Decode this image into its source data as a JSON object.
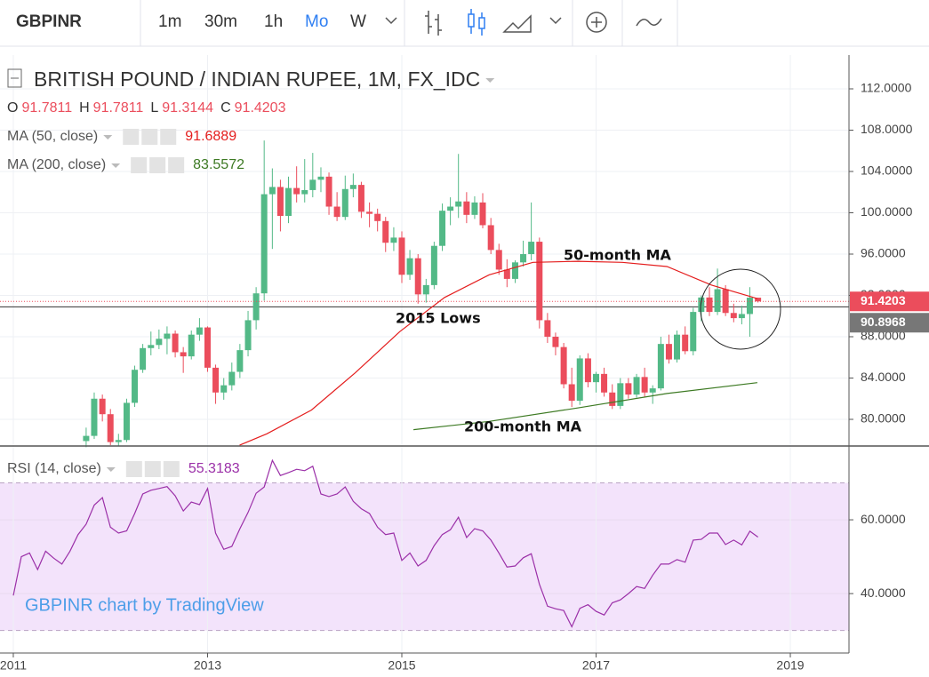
{
  "chart_data": {
    "type": "candlestick",
    "toolbar": {
      "symbol": "GBPINR",
      "intervals": [
        "1m",
        "30m",
        "1h",
        "Mo",
        "W"
      ],
      "active_interval": 3
    },
    "title": "BRITISH POUND / INDIAN RUPEE, 1M, FX_IDC",
    "ohlc_labels": [
      "O",
      "H",
      "L",
      "C"
    ],
    "up_color": "#53b987",
    "down_color": "#eb4d5c",
    "x": [
      2011.0,
      2011.083,
      2011.167,
      2011.25,
      2011.333,
      2011.417,
      2011.5,
      2011.583,
      2011.667,
      2011.75,
      2011.833,
      2011.917,
      2012.0,
      2012.083,
      2012.167,
      2012.25,
      2012.333,
      2012.417,
      2012.5,
      2012.583,
      2012.667,
      2012.75,
      2012.833,
      2012.917,
      2013.0,
      2013.083,
      2013.167,
      2013.25,
      2013.333,
      2013.417,
      2013.5,
      2013.583,
      2013.667,
      2013.75,
      2013.833,
      2013.917,
      2014.0,
      2014.083,
      2014.167,
      2014.25,
      2014.333,
      2014.417,
      2014.5,
      2014.583,
      2014.667,
      2014.75,
      2014.833,
      2014.917,
      2015.0,
      2015.083,
      2015.167,
      2015.25,
      2015.333,
      2015.417,
      2015.5,
      2015.583,
      2015.667,
      2015.75,
      2015.833,
      2015.917,
      2016.0,
      2016.083,
      2016.167,
      2016.25,
      2016.333,
      2016.417,
      2016.5,
      2016.583,
      2016.667,
      2016.75,
      2016.833,
      2016.917,
      2017.0,
      2017.083,
      2017.167,
      2017.25,
      2017.333,
      2017.417,
      2017.5,
      2017.583,
      2017.667,
      2017.75,
      2017.833,
      2017.917,
      2018.0,
      2018.083,
      2018.167,
      2018.25,
      2018.333,
      2018.417,
      2018.5,
      2018.583,
      2018.667
    ],
    "ohlc": [
      null,
      null,
      null,
      null,
      null,
      null,
      null,
      null,
      null,
      [
        77.9,
        79.2,
        77.3,
        78.4
      ],
      [
        78.4,
        82.6,
        78.1,
        82.0
      ],
      [
        82.0,
        82.4,
        79.8,
        80.5
      ],
      [
        80.5,
        81.0,
        77.5,
        77.8
      ],
      [
        77.8,
        78.6,
        77.4,
        78.0
      ],
      [
        78.0,
        82.0,
        77.8,
        81.6
      ],
      [
        81.6,
        85.2,
        81.2,
        84.8
      ],
      [
        84.8,
        87.3,
        84.5,
        86.9
      ],
      [
        86.9,
        88.5,
        86.2,
        87.2
      ],
      [
        87.2,
        88.7,
        86.8,
        87.8
      ],
      [
        87.8,
        89.0,
        86.3,
        88.3
      ],
      [
        88.3,
        88.6,
        86.0,
        86.5
      ],
      [
        86.5,
        87.0,
        84.5,
        86.1
      ],
      [
        86.1,
        88.6,
        85.8,
        88.2
      ],
      [
        88.2,
        89.8,
        87.6,
        88.9
      ],
      [
        88.9,
        89.0,
        84.6,
        85.0
      ],
      [
        85.0,
        85.3,
        81.5,
        82.6
      ],
      [
        82.6,
        84.0,
        81.9,
        83.3
      ],
      [
        83.3,
        85.5,
        82.8,
        84.6
      ],
      [
        84.6,
        87.3,
        84.0,
        86.7
      ],
      [
        86.7,
        90.5,
        86.1,
        89.6
      ],
      [
        89.6,
        92.8,
        88.7,
        92.2
      ],
      [
        92.2,
        107.0,
        91.5,
        101.8
      ],
      [
        101.8,
        104.3,
        96.5,
        102.5
      ],
      [
        102.5,
        103.2,
        98.2,
        99.7
      ],
      [
        99.7,
        103.5,
        99.0,
        102.4
      ],
      [
        102.4,
        104.5,
        101.0,
        101.8
      ],
      [
        101.8,
        105.2,
        101.0,
        102.2
      ],
      [
        102.2,
        105.8,
        101.5,
        103.2
      ],
      [
        103.2,
        104.4,
        102.0,
        103.5
      ],
      [
        103.5,
        103.9,
        99.8,
        100.6
      ],
      [
        100.6,
        102.0,
        99.2,
        99.6
      ],
      [
        99.6,
        103.6,
        99.3,
        102.3
      ],
      [
        102.3,
        103.8,
        101.5,
        102.7
      ],
      [
        102.7,
        103.0,
        99.5,
        100.1
      ],
      [
        100.1,
        101.0,
        98.6,
        99.9
      ],
      [
        99.9,
        100.4,
        98.2,
        99.2
      ],
      [
        99.2,
        99.6,
        96.2,
        97.1
      ],
      [
        97.1,
        98.6,
        96.3,
        97.6
      ],
      [
        97.6,
        98.2,
        93.2,
        94.0
      ],
      [
        94.0,
        96.4,
        93.5,
        95.6
      ],
      [
        95.6,
        96.0,
        91.2,
        92.1
      ],
      [
        92.1,
        93.6,
        91.3,
        93.0
      ],
      [
        93.0,
        97.2,
        92.6,
        96.8
      ],
      [
        96.8,
        100.9,
        96.3,
        100.2
      ],
      [
        100.2,
        101.5,
        98.8,
        100.6
      ],
      [
        100.6,
        105.7,
        99.5,
        101.1
      ],
      [
        101.1,
        102.0,
        99.0,
        99.8
      ],
      [
        99.8,
        101.6,
        99.4,
        101.0
      ],
      [
        101.0,
        101.9,
        98.5,
        98.8
      ],
      [
        98.8,
        99.5,
        96.0,
        96.4
      ],
      [
        96.4,
        97.0,
        94.0,
        94.5
      ],
      [
        94.5,
        95.5,
        92.8,
        93.6
      ],
      [
        93.6,
        95.4,
        93.2,
        95.2
      ],
      [
        95.2,
        97.3,
        94.8,
        96.0
      ],
      [
        96.0,
        101.0,
        95.4,
        97.2
      ],
      [
        97.2,
        97.6,
        88.8,
        89.6
      ],
      [
        89.6,
        90.3,
        87.4,
        88.0
      ],
      [
        88.0,
        88.4,
        86.2,
        87.0
      ],
      [
        87.0,
        87.4,
        83.0,
        83.4
      ],
      [
        83.4,
        85.0,
        81.2,
        81.8
      ],
      [
        81.8,
        86.2,
        81.4,
        85.9
      ],
      [
        85.9,
        86.4,
        83.1,
        83.6
      ],
      [
        83.6,
        84.6,
        82.6,
        84.4
      ],
      [
        84.4,
        85.0,
        82.2,
        82.6
      ],
      [
        82.6,
        83.4,
        81.0,
        81.3
      ],
      [
        81.3,
        84.0,
        81.0,
        83.5
      ],
      [
        83.5,
        84.0,
        82.0,
        82.4
      ],
      [
        82.4,
        84.4,
        82.1,
        84.1
      ],
      [
        84.1,
        85.0,
        82.2,
        82.6
      ],
      [
        82.6,
        83.3,
        81.5,
        83.0
      ],
      [
        83.0,
        88.0,
        82.8,
        87.3
      ],
      [
        87.3,
        88.2,
        85.4,
        85.8
      ],
      [
        85.8,
        88.6,
        85.5,
        88.2
      ],
      [
        88.2,
        89.0,
        86.3,
        86.6
      ],
      [
        86.6,
        90.8,
        86.2,
        90.4
      ],
      [
        90.4,
        92.0,
        89.5,
        91.8
      ],
      [
        91.8,
        92.8,
        90.0,
        90.4
      ],
      [
        90.4,
        94.6,
        90.1,
        92.6
      ],
      [
        92.6,
        93.0,
        90.0,
        90.3
      ],
      [
        90.3,
        91.2,
        89.4,
        89.8
      ],
      [
        89.8,
        91.0,
        89.2,
        90.2
      ],
      [
        90.2,
        92.8,
        88.0,
        91.78
      ],
      [
        91.7811,
        91.7811,
        91.3144,
        91.4203
      ]
    ],
    "xlim": [
      2010.863,
      2019.604
    ],
    "xticks": [
      2011,
      2013,
      2015,
      2017,
      2019
    ],
    "ylim": [
      77.42,
      115.27
    ],
    "yticks": [
      {
        "value": 80,
        "label": "80.0000"
      },
      {
        "value": 84,
        "label": "84.0000"
      },
      {
        "value": 88,
        "label": "88.0000"
      },
      {
        "value": 92,
        "label": "92.0000"
      },
      {
        "value": 96,
        "label": "96.0000"
      },
      {
        "value": 100,
        "label": "100.0000"
      },
      {
        "value": 104,
        "label": "104.0000"
      },
      {
        "value": 108,
        "label": "108.0000"
      },
      {
        "value": 112,
        "label": "112.0000"
      }
    ],
    "grid": true,
    "crosshair_price": 90.8968,
    "ma": [
      {
        "name": "MA (50, close)",
        "color": "#e41d1d",
        "x": [
          2013.33,
          2013.61,
          2014.07,
          2014.52,
          2014.98,
          2015.44,
          2015.9,
          2016.35,
          2016.81,
          2017.27,
          2017.73,
          2018.19,
          2018.66
        ],
        "values": [
          77.5,
          78.6,
          80.9,
          84.5,
          88.5,
          91.8,
          94.0,
          95.2,
          95.3,
          95.2,
          94.8,
          93.0,
          91.6889
        ]
      },
      {
        "name": "MA (200, close)",
        "color": "#3d7a23",
        "x": [
          2015.12,
          2015.9,
          2016.81,
          2017.73,
          2018.66
        ],
        "values": [
          79.0,
          79.8,
          81.1,
          82.5,
          83.5572
        ]
      }
    ],
    "rsi": {
      "name": "RSI (14, close)",
      "color": "#9b30a8",
      "band_color": "#f3e3fb",
      "values": [
        39.5,
        50,
        51,
        46.5,
        51.5,
        49.6,
        48,
        51.5,
        56,
        58.8,
        64,
        66,
        58,
        56.4,
        57,
        61.7,
        67,
        68,
        68.5,
        69,
        66.5,
        62.4,
        64.8,
        64.1,
        68.5,
        56.4,
        52,
        52.8,
        57.6,
        62,
        67.2,
        68.9,
        76.1,
        72,
        72.8,
        73.7,
        73.3,
        74.5,
        67,
        66.3,
        67,
        68.9,
        65,
        63,
        61.7,
        58,
        56,
        56.4,
        49,
        51,
        47.5,
        49,
        53,
        56,
        57.3,
        60.7,
        55.2,
        57.6,
        57,
        54.5,
        51,
        47.2,
        47.5,
        49.7,
        50.8,
        42.5,
        36.6,
        35.9,
        35.4,
        31,
        36,
        37,
        35.2,
        34.2,
        37.5,
        38.3,
        40,
        41.9,
        41.4,
        45,
        48,
        48,
        49.2,
        48.5,
        54.5,
        54.7,
        56.4,
        56.4,
        53.3,
        54.5,
        53.2,
        56.9,
        55.3183
      ],
      "ylim": [
        23.9,
        80
      ],
      "yticks": [
        {
          "value": 40,
          "label": "40.0000"
        },
        {
          "value": 60,
          "label": "60.0000"
        }
      ],
      "bands": [
        30,
        70
      ]
    },
    "annotations": [
      "50-month MA",
      "2015 Lows",
      "200-month MA"
    ],
    "watermark": "GBPINR chart by TradingView"
  }
}
